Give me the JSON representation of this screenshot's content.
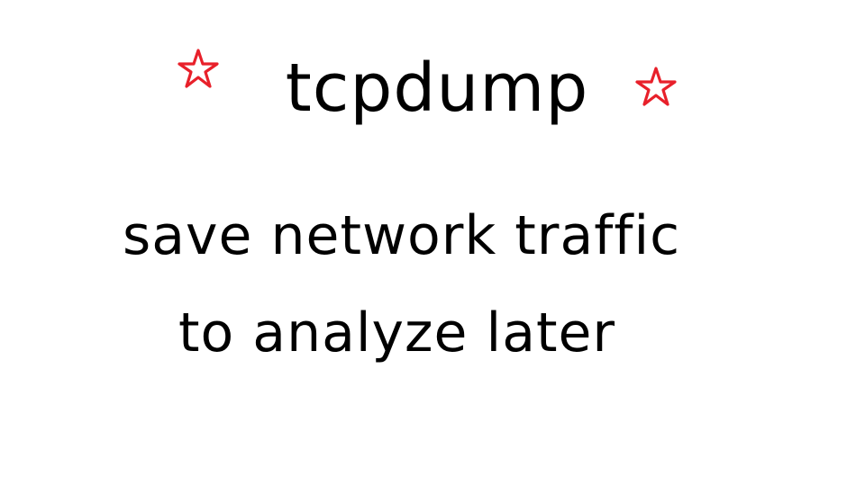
{
  "title": "tcpdump",
  "lines": [
    "save network traffic",
    "to analyze later"
  ],
  "icons": {
    "left": "star-icon",
    "right": "star-icon"
  },
  "colors": {
    "text": "#000000",
    "star": "#e8202a",
    "background": "#ffffff"
  }
}
